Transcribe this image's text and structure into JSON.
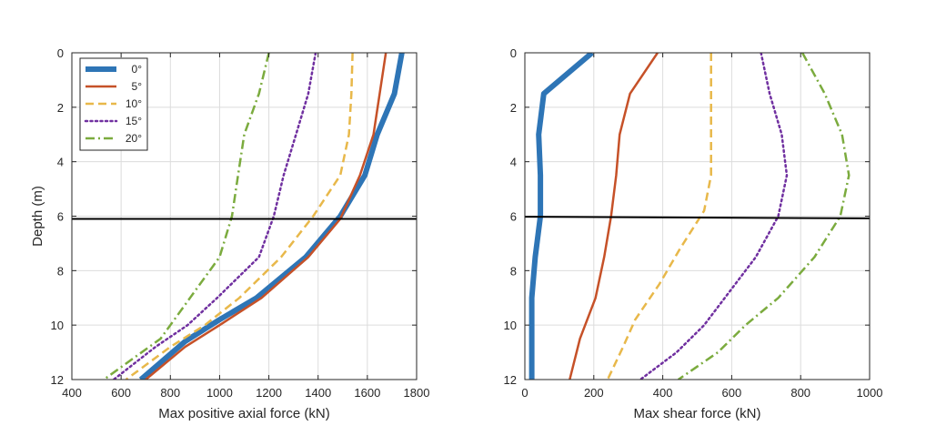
{
  "chart_data": [
    {
      "type": "line",
      "xlabel": "Max positive axial force (kN)",
      "ylabel": "Depth (m)",
      "xlim": [
        400,
        1800
      ],
      "ylim": [
        12,
        0
      ],
      "xticks": [
        400,
        600,
        800,
        1000,
        1200,
        1400,
        1600,
        1800
      ],
      "yticks": [
        0,
        2,
        4,
        6,
        8,
        10,
        12
      ],
      "grid": true,
      "reference_depth": 6.1,
      "legend": {
        "placement": "top-left",
        "entries": [
          "0°",
          "5°",
          "10°",
          "15°",
          "20°"
        ]
      },
      "series": [
        {
          "name": "0°",
          "color": "#2e75b6",
          "style": "solid",
          "width": 6,
          "points": [
            [
              1740,
              0
            ],
            [
              1710,
              1.5
            ],
            [
              1640,
              3
            ],
            [
              1590,
              4.5
            ],
            [
              1490,
              6
            ],
            [
              1350,
              7.5
            ],
            [
              1150,
              9
            ],
            [
              1000,
              9.8
            ],
            [
              860,
              10.6
            ],
            [
              680,
              12
            ]
          ]
        },
        {
          "name": "5°",
          "color": "#c65128",
          "style": "solid",
          "width": 2.5,
          "points": [
            [
              1675,
              0
            ],
            [
              1650,
              1.5
            ],
            [
              1625,
              3
            ],
            [
              1570,
              4.5
            ],
            [
              1490,
              6.1
            ],
            [
              1360,
              7.5
            ],
            [
              1170,
              9
            ],
            [
              1000,
              10
            ],
            [
              860,
              10.8
            ],
            [
              700,
              12
            ]
          ]
        },
        {
          "name": "10°",
          "color": "#e8b84a",
          "style": "dash",
          "width": 2.5,
          "points": [
            [
              1540,
              0
            ],
            [
              1535,
              1.5
            ],
            [
              1525,
              3
            ],
            [
              1490,
              4.5
            ],
            [
              1380,
              6
            ],
            [
              1250,
              7.5
            ],
            [
              1080,
              9
            ],
            [
              940,
              10
            ],
            [
              800,
              10.8
            ],
            [
              620,
              12
            ]
          ]
        },
        {
          "name": "15°",
          "color": "#7030a0",
          "style": "dot",
          "width": 2.5,
          "points": [
            [
              1390,
              0
            ],
            [
              1360,
              1.5
            ],
            [
              1310,
              3
            ],
            [
              1260,
              4.5
            ],
            [
              1220,
              6
            ],
            [
              1160,
              7.5
            ],
            [
              990,
              9
            ],
            [
              870,
              10
            ],
            [
              740,
              10.8
            ],
            [
              570,
              12
            ]
          ]
        },
        {
          "name": "20°",
          "color": "#7bab3e",
          "style": "dashdot",
          "width": 2.5,
          "points": [
            [
              1200,
              0
            ],
            [
              1160,
              1.5
            ],
            [
              1100,
              3
            ],
            [
              1075,
              4.5
            ],
            [
              1050,
              6
            ],
            [
              1000,
              7.5
            ],
            [
              880,
              9
            ],
            [
              800,
              10
            ],
            [
              760,
              10.5
            ],
            [
              530,
              12
            ]
          ]
        }
      ]
    },
    {
      "type": "line",
      "xlabel": "Max shear force (kN)",
      "ylabel": "",
      "xlim": [
        0,
        1000
      ],
      "ylim": [
        12,
        0
      ],
      "xticks": [
        0,
        200,
        400,
        600,
        800,
        1000
      ],
      "yticks": [
        0,
        2,
        4,
        6,
        8,
        10,
        12
      ],
      "grid": true,
      "reference_line": [
        [
          0,
          6.02
        ],
        [
          1000,
          6.08
        ]
      ],
      "series": [
        {
          "name": "0°",
          "color": "#2e75b6",
          "style": "solid",
          "width": 6,
          "points": [
            [
              195,
              0
            ],
            [
              55,
              1.5
            ],
            [
              40,
              3
            ],
            [
              45,
              4.5
            ],
            [
              45,
              6
            ],
            [
              30,
              7.5
            ],
            [
              20,
              9
            ],
            [
              20,
              10.5
            ],
            [
              20,
              12
            ]
          ]
        },
        {
          "name": "5°",
          "color": "#c65128",
          "style": "solid",
          "width": 2.5,
          "points": [
            [
              385,
              0
            ],
            [
              305,
              1.5
            ],
            [
              275,
              3
            ],
            [
              265,
              4.5
            ],
            [
              250,
              6
            ],
            [
              230,
              7.5
            ],
            [
              205,
              9
            ],
            [
              160,
              10.5
            ],
            [
              130,
              12
            ]
          ]
        },
        {
          "name": "10°",
          "color": "#e8b84a",
          "style": "dash",
          "width": 2.5,
          "points": [
            [
              540,
              0
            ],
            [
              540,
              1.5
            ],
            [
              540,
              3
            ],
            [
              540,
              4.5
            ],
            [
              520,
              5.8
            ],
            [
              450,
              7.2
            ],
            [
              390,
              8.5
            ],
            [
              320,
              9.8
            ],
            [
              285,
              10.8
            ],
            [
              240,
              12
            ]
          ]
        },
        {
          "name": "15°",
          "color": "#7030a0",
          "style": "dot",
          "width": 2.5,
          "points": [
            [
              685,
              0
            ],
            [
              710,
              1.5
            ],
            [
              745,
              3
            ],
            [
              760,
              4.5
            ],
            [
              735,
              6
            ],
            [
              670,
              7.5
            ],
            [
              580,
              9
            ],
            [
              520,
              10
            ],
            [
              440,
              11
            ],
            [
              335,
              12
            ]
          ]
        },
        {
          "name": "20°",
          "color": "#7bab3e",
          "style": "dashdot",
          "width": 2.5,
          "points": [
            [
              805,
              0
            ],
            [
              870,
              1.5
            ],
            [
              920,
              3
            ],
            [
              940,
              4.5
            ],
            [
              915,
              6
            ],
            [
              840,
              7.5
            ],
            [
              735,
              9
            ],
            [
              640,
              10
            ],
            [
              560,
              11
            ],
            [
              445,
              12
            ]
          ]
        }
      ]
    }
  ]
}
